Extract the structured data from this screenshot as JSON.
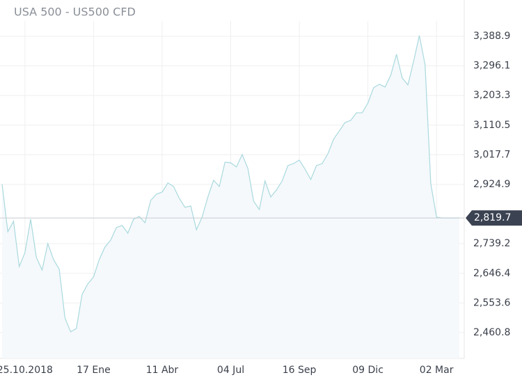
{
  "chart_data": {
    "type": "area",
    "title": "USA 500 - US500 CFD",
    "categories": [
      null,
      null,
      null,
      null,
      "25.10.2018",
      null,
      null,
      null,
      null,
      null,
      null,
      null,
      null,
      null,
      null,
      null,
      "17 Ene",
      null,
      null,
      null,
      null,
      null,
      null,
      null,
      null,
      null,
      null,
      null,
      "11 Abr",
      null,
      null,
      null,
      null,
      null,
      null,
      null,
      null,
      null,
      null,
      null,
      "04 Jul",
      null,
      null,
      null,
      null,
      null,
      null,
      null,
      null,
      null,
      null,
      null,
      "16 Sep",
      null,
      null,
      null,
      null,
      null,
      null,
      null,
      null,
      null,
      null,
      null,
      "09 Dic",
      null,
      null,
      null,
      null,
      null,
      null,
      null,
      null,
      null,
      null,
      null,
      "02 Mar",
      null,
      null,
      null,
      null
    ],
    "values": [
      2925,
      2776.7,
      2809.4,
      2667.8,
      2711.3,
      2815.9,
      2696.1,
      2656.9,
      2739.7,
      2689.6,
      2659.1,
      2506.5,
      2463,
      2473.9,
      2580.6,
      2613.3,
      2635.1,
      2689.6,
      2728.8,
      2750.6,
      2789.8,
      2796.3,
      2772.3,
      2815.9,
      2824.6,
      2805,
      2874.7,
      2894.3,
      2900.9,
      2929.2,
      2918.3,
      2881.3,
      2853,
      2857.3,
      2783.2,
      2822.5,
      2885.6,
      2937.9,
      2918.3,
      2994.6,
      2992.4,
      2979.3,
      3018.5,
      2975,
      2872.6,
      2846.4,
      2935.7,
      2885.6,
      2907.4,
      2935.7,
      2983.7,
      2990.2,
      3001.1,
      2972.8,
      2940.1,
      2983.7,
      2990.2,
      3020.7,
      3066.5,
      3092.6,
      3118.7,
      3125.3,
      3149.2,
      3149.2,
      3179.7,
      3227.7,
      3238.6,
      3229.9,
      3266.9,
      3332.3,
      3258.2,
      3236.4,
      3310.5,
      3391.1,
      3299.6,
      2927,
      2822.5,
      2819.7,
      2819.7,
      2819.7,
      2819.7
    ],
    "color": "#a9d9dd",
    "ylim": [
      2380,
      3437
    ],
    "yticks": [
      {
        "value": 2460.8,
        "label": "2,460.8"
      },
      {
        "value": 2553.6,
        "label": "2,553.6"
      },
      {
        "value": 2646.4,
        "label": "2,646.4"
      },
      {
        "value": 2739.2,
        "label": "2,739.2"
      },
      {
        "value": 2924.9,
        "label": "2,924.9"
      },
      {
        "value": 3017.7,
        "label": "3,017.7"
      },
      {
        "value": 3110.5,
        "label": "3,110.5"
      },
      {
        "value": 3203.3,
        "label": "3,203.3"
      },
      {
        "value": 3296.1,
        "label": "3,296.1"
      },
      {
        "value": 3388.9,
        "label": "3,388.9"
      }
    ],
    "current": {
      "value": 2819.7,
      "label": "2,819.7"
    },
    "grid": true
  }
}
